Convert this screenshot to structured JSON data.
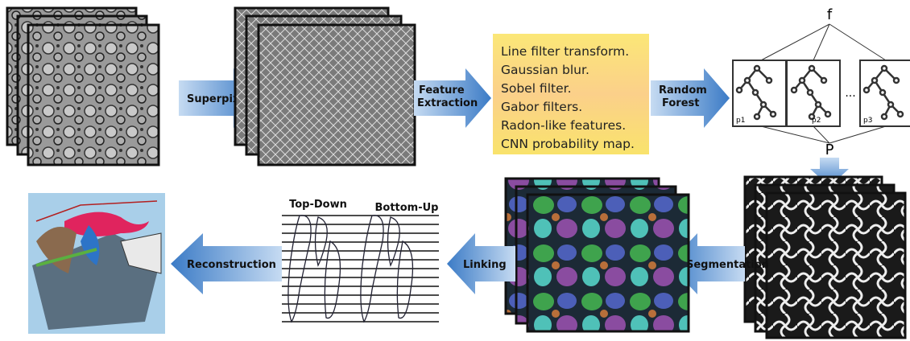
{
  "steps": {
    "superpixel": "Superpixel",
    "feature_extraction": [
      "Feature",
      "Extraction"
    ],
    "random_forest": [
      "Random",
      "Forest"
    ],
    "segmentation": "Segmentation",
    "linking": "Linking",
    "reconstruction": "Reconstruction"
  },
  "features": [
    "Line filter transform.",
    "Gaussian blur.",
    "Sobel filter.",
    "Gabor filters.",
    "Radon-like features.",
    "CNN probability map."
  ],
  "forest": {
    "root": "f",
    "output": "P",
    "trees": [
      "p1",
      "p2",
      "p3"
    ],
    "ellipsis": "..."
  },
  "linking": {
    "top_down": "Top-Down",
    "bottom_up": "Bottom-Up"
  }
}
